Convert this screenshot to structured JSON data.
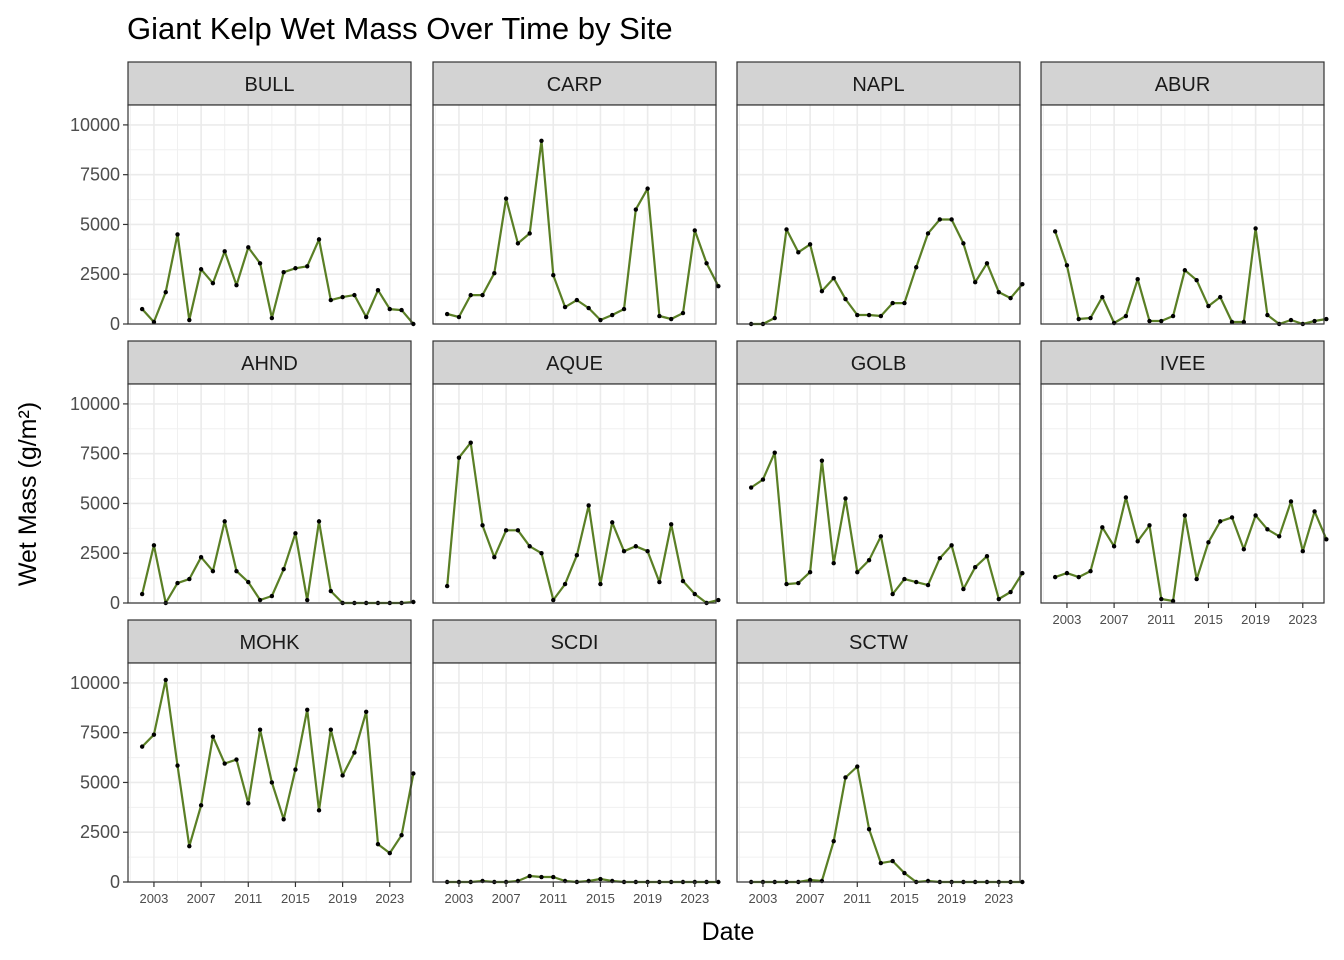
{
  "chart_data": {
    "type": "line",
    "title": "Giant Kelp Wet Mass Over Time by Site",
    "xlabel": "Date",
    "ylabel": "Wet Mass (g/m²)",
    "ylim": [
      0,
      11000
    ],
    "y_ticks": [
      "0",
      "2500",
      "5000",
      "7500",
      "10000"
    ],
    "y_tick_values": [
      0,
      2500,
      5000,
      7500,
      10000
    ],
    "x_ticks": [
      "2003",
      "2007",
      "2011",
      "2015",
      "2019",
      "2023"
    ],
    "x_tick_values": [
      2003,
      2007,
      2011,
      2015,
      2019,
      2023
    ],
    "xlim": [
      2000.8,
      2024.8
    ],
    "grid": true,
    "line_color": "#5a7f25",
    "point_color": "#000000",
    "strip_fill": "#d3d3d3",
    "panels": [
      {
        "site": "BULL",
        "x": [
          2002,
          2003,
          2004,
          2005,
          2006,
          2007,
          2008,
          2009,
          2010,
          2011,
          2012,
          2013,
          2014,
          2015,
          2016,
          2017,
          2018,
          2019,
          2020,
          2021,
          2022,
          2023,
          2024,
          2025
        ],
        "y": [
          750,
          100,
          1600,
          4500,
          200,
          2750,
          2050,
          3650,
          1950,
          3850,
          3050,
          300,
          2600,
          2800,
          2900,
          4250,
          1200,
          1350,
          1450,
          350,
          1700,
          750,
          700,
          0
        ]
      },
      {
        "site": "CARP",
        "x": [
          2002,
          2003,
          2004,
          2005,
          2006,
          2007,
          2008,
          2009,
          2010,
          2011,
          2012,
          2013,
          2014,
          2015,
          2016,
          2017,
          2018,
          2019,
          2020,
          2021,
          2022,
          2023,
          2024,
          2025
        ],
        "y": [
          500,
          350,
          1450,
          1450,
          2550,
          6300,
          4050,
          4550,
          9200,
          2450,
          850,
          1200,
          800,
          200,
          450,
          750,
          5750,
          6800,
          400,
          250,
          550,
          4700,
          3050,
          1900
        ]
      },
      {
        "site": "NAPL",
        "x": [
          2002,
          2003,
          2004,
          2005,
          2006,
          2007,
          2008,
          2009,
          2010,
          2011,
          2012,
          2013,
          2014,
          2015,
          2016,
          2017,
          2018,
          2019,
          2020,
          2021,
          2022,
          2023,
          2024,
          2025
        ],
        "y": [
          0,
          0,
          300,
          4750,
          3600,
          4000,
          1650,
          2300,
          1250,
          450,
          450,
          400,
          1050,
          1050,
          2850,
          4550,
          5250,
          5250,
          4050,
          2100,
          3050,
          1600,
          1300,
          2000
        ]
      },
      {
        "site": "ABUR",
        "x": [
          2002,
          2003,
          2004,
          2005,
          2006,
          2007,
          2008,
          2009,
          2010,
          2011,
          2012,
          2013,
          2014,
          2015,
          2016,
          2017,
          2018,
          2019,
          2020,
          2021,
          2022,
          2023,
          2024,
          2025
        ],
        "y": [
          4650,
          2950,
          250,
          300,
          1350,
          50,
          400,
          2250,
          150,
          150,
          400,
          2700,
          2200,
          900,
          1350,
          100,
          100,
          4800,
          450,
          0,
          200,
          0,
          150,
          250
        ]
      },
      {
        "site": "AHND",
        "x": [
          2002,
          2003,
          2004,
          2005,
          2006,
          2007,
          2008,
          2009,
          2010,
          2011,
          2012,
          2013,
          2014,
          2015,
          2016,
          2017,
          2018,
          2019,
          2020,
          2021,
          2022,
          2023,
          2024,
          2025
        ],
        "y": [
          450,
          2900,
          0,
          1000,
          1200,
          2300,
          1600,
          4100,
          1600,
          1050,
          150,
          350,
          1700,
          3500,
          150,
          4100,
          600,
          0,
          0,
          0,
          0,
          0,
          0,
          50
        ]
      },
      {
        "site": "AQUE",
        "x": [
          2002,
          2003,
          2004,
          2005,
          2006,
          2007,
          2008,
          2009,
          2010,
          2011,
          2012,
          2013,
          2014,
          2015,
          2016,
          2017,
          2018,
          2019,
          2020,
          2021,
          2022,
          2023,
          2024,
          2025
        ],
        "y": [
          850,
          7300,
          8050,
          3900,
          2300,
          3650,
          3650,
          2850,
          2500,
          150,
          950,
          2400,
          4900,
          950,
          4050,
          2600,
          2850,
          2600,
          1050,
          3950,
          1100,
          450,
          0,
          150
        ]
      },
      {
        "site": "GOLB",
        "x": [
          2002,
          2003,
          2004,
          2005,
          2006,
          2007,
          2008,
          2009,
          2010,
          2011,
          2012,
          2013,
          2014,
          2015,
          2016,
          2017,
          2018,
          2019,
          2020,
          2021,
          2022,
          2023,
          2024,
          2025
        ],
        "y": [
          5800,
          6200,
          7550,
          950,
          1000,
          1550,
          7150,
          2000,
          5250,
          1550,
          2150,
          3350,
          450,
          1200,
          1050,
          900,
          2250,
          2900,
          700,
          1800,
          2350,
          200,
          550,
          1500
        ]
      },
      {
        "site": "IVEE",
        "x": [
          2002,
          2003,
          2004,
          2005,
          2006,
          2007,
          2008,
          2009,
          2010,
          2011,
          2012,
          2013,
          2014,
          2015,
          2016,
          2017,
          2018,
          2019,
          2020,
          2021,
          2022,
          2023,
          2024,
          2025
        ],
        "y": [
          1300,
          1500,
          1300,
          1600,
          3800,
          2850,
          5300,
          3100,
          3900,
          200,
          100,
          4400,
          1200,
          3050,
          4100,
          4300,
          2700,
          4400,
          3700,
          3350,
          5100,
          2600,
          4600,
          3200
        ]
      },
      {
        "site": "MOHK",
        "x": [
          2002,
          2003,
          2004,
          2005,
          2006,
          2007,
          2008,
          2009,
          2010,
          2011,
          2012,
          2013,
          2014,
          2015,
          2016,
          2017,
          2018,
          2019,
          2020,
          2021,
          2022,
          2023,
          2024,
          2025
        ],
        "y": [
          6800,
          7400,
          10150,
          5850,
          1800,
          3850,
          7300,
          5950,
          6150,
          3950,
          7650,
          5000,
          3150,
          5650,
          8650,
          3600,
          7650,
          5350,
          6500,
          8550,
          1900,
          1450,
          2350,
          5450
        ]
      },
      {
        "site": "SCDI",
        "x": [
          2002,
          2003,
          2004,
          2005,
          2006,
          2007,
          2008,
          2009,
          2010,
          2011,
          2012,
          2013,
          2014,
          2015,
          2016,
          2017,
          2018,
          2019,
          2020,
          2021,
          2022,
          2023,
          2024,
          2025
        ],
        "y": [
          0,
          0,
          0,
          50,
          0,
          0,
          50,
          300,
          250,
          250,
          50,
          0,
          50,
          150,
          50,
          0,
          0,
          0,
          0,
          0,
          0,
          0,
          0,
          0
        ]
      },
      {
        "site": "SCTW",
        "x": [
          2002,
          2003,
          2004,
          2005,
          2006,
          2007,
          2008,
          2009,
          2010,
          2011,
          2012,
          2013,
          2014,
          2015,
          2016,
          2017,
          2018,
          2019,
          2020,
          2021,
          2022,
          2023,
          2024,
          2025
        ],
        "y": [
          0,
          0,
          0,
          0,
          0,
          100,
          50,
          2050,
          5250,
          5800,
          2650,
          950,
          1050,
          450,
          0,
          50,
          0,
          0,
          0,
          0,
          0,
          0,
          0,
          0
        ]
      }
    ]
  }
}
